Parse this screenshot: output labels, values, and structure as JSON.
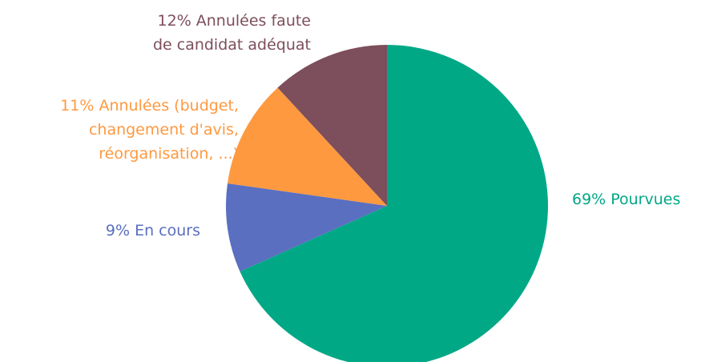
{
  "chart_data": {
    "type": "pie",
    "categories": [
      [
        "Pourvues"
      ],
      [
        "En cours"
      ],
      [
        "Annulées (budget,",
        "changement d'avis,",
        "réorganisation, ...)"
      ],
      [
        "Annulées faute",
        "de candidat adéquat"
      ]
    ],
    "values": [
      69,
      9,
      11,
      12
    ],
    "value_labels": [
      "69%",
      "9%",
      "11%",
      "12%"
    ],
    "colors": [
      "#00a886",
      "#5a6fc0",
      "#ff9940",
      "#7d4e5b"
    ]
  }
}
